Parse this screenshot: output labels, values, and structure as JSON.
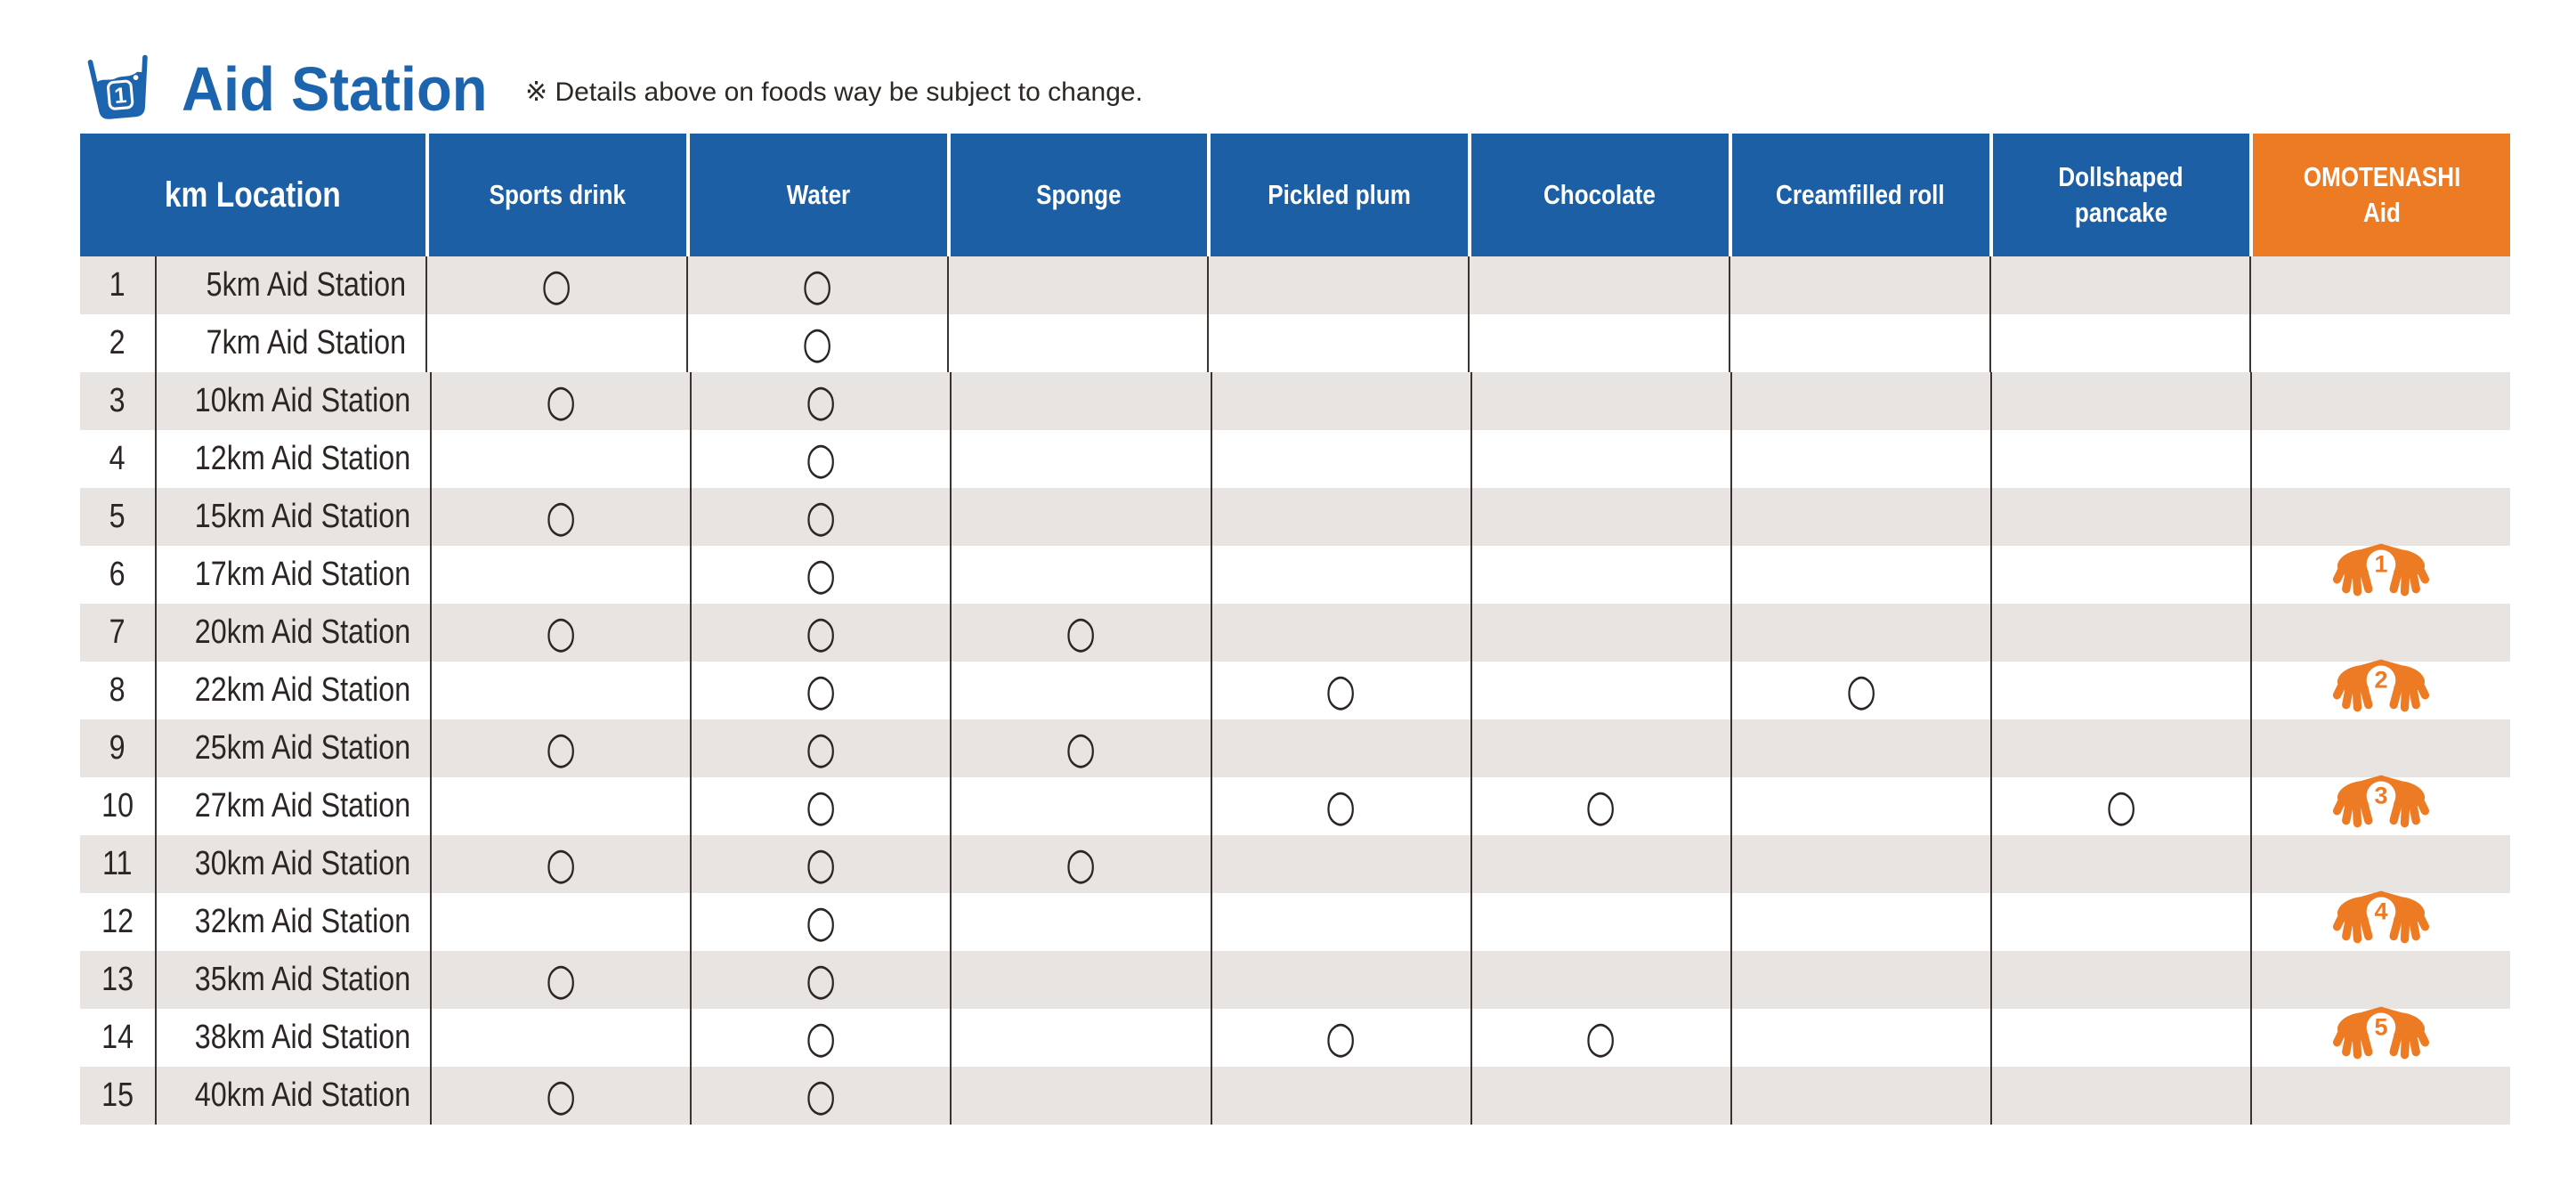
{
  "header": {
    "badge": "1",
    "title": "Aid Station",
    "note": "※ Details above on foods way be subject to change."
  },
  "table": {
    "columns": [
      {
        "line1": "km Location",
        "line2": ""
      },
      {
        "line1": "Sports drink",
        "line2": ""
      },
      {
        "line1": "Water",
        "line2": ""
      },
      {
        "line1": "Sponge",
        "line2": ""
      },
      {
        "line1": "Pickled plum",
        "line2": ""
      },
      {
        "line1": "Chocolate",
        "line2": ""
      },
      {
        "line1": "Creamfilled roll",
        "line2": ""
      },
      {
        "line1": "Dollshaped",
        "line2": "pancake"
      },
      {
        "line1": "OMOTENASHI",
        "line2": "Aid"
      }
    ],
    "mark_symbol": "○",
    "rows": [
      {
        "num": "1",
        "name": "5km Aid Station",
        "marks": [
          "○",
          "○",
          "",
          "",
          "",
          "",
          ""
        ],
        "aid": ""
      },
      {
        "num": "2",
        "name": "7km Aid Station",
        "marks": [
          "",
          "○",
          "",
          "",
          "",
          "",
          ""
        ],
        "aid": ""
      },
      {
        "num": "3",
        "name": "10km Aid Station",
        "marks": [
          "○",
          "○",
          "",
          "",
          "",
          "",
          ""
        ],
        "aid": ""
      },
      {
        "num": "4",
        "name": "12km Aid Station",
        "marks": [
          "",
          "○",
          "",
          "",
          "",
          "",
          ""
        ],
        "aid": ""
      },
      {
        "num": "5",
        "name": "15km Aid Station",
        "marks": [
          "○",
          "○",
          "",
          "",
          "",
          "",
          ""
        ],
        "aid": ""
      },
      {
        "num": "6",
        "name": "17km Aid Station",
        "marks": [
          "",
          "○",
          "",
          "",
          "",
          "",
          ""
        ],
        "aid": "1"
      },
      {
        "num": "7",
        "name": "20km Aid Station",
        "marks": [
          "○",
          "○",
          "○",
          "",
          "",
          "",
          ""
        ],
        "aid": ""
      },
      {
        "num": "8",
        "name": "22km Aid Station",
        "marks": [
          "",
          "○",
          "",
          "○",
          "",
          "○",
          ""
        ],
        "aid": "2"
      },
      {
        "num": "9",
        "name": "25km Aid Station",
        "marks": [
          "○",
          "○",
          "○",
          "",
          "",
          "",
          ""
        ],
        "aid": ""
      },
      {
        "num": "10",
        "name": "27km Aid Station",
        "marks": [
          "",
          "○",
          "",
          "○",
          "○",
          "",
          "○"
        ],
        "aid": "3"
      },
      {
        "num": "11",
        "name": "30km Aid Station",
        "marks": [
          "○",
          "○",
          "○",
          "",
          "",
          "",
          ""
        ],
        "aid": ""
      },
      {
        "num": "12",
        "name": "32km Aid Station",
        "marks": [
          "",
          "○",
          "",
          "",
          "",
          "",
          ""
        ],
        "aid": "4"
      },
      {
        "num": "13",
        "name": "35km Aid Station",
        "marks": [
          "○",
          "○",
          "",
          "",
          "",
          "",
          ""
        ],
        "aid": ""
      },
      {
        "num": "14",
        "name": "38km Aid Station",
        "marks": [
          "",
          "○",
          "",
          "○",
          "○",
          "",
          ""
        ],
        "aid": "5"
      },
      {
        "num": "15",
        "name": "40km Aid Station",
        "marks": [
          "○",
          "○",
          "",
          "",
          "",
          "",
          ""
        ],
        "aid": ""
      }
    ]
  },
  "colors": {
    "header_blue": "#1C5FA5",
    "title_blue": "#1C64AE",
    "accent_orange": "#ED7B24",
    "stripe_gray": "#E8E4E1",
    "grid_line": "#3B332F",
    "text_dark": "#2B2523"
  }
}
